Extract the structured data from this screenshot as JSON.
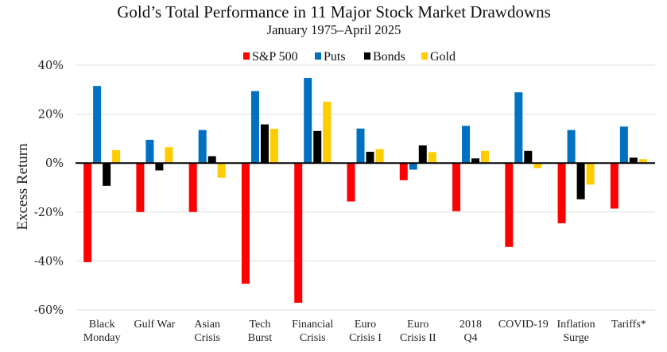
{
  "chart_data": {
    "type": "bar",
    "title": "Gold’s Total Performance in 11 Major Stock Market Drawdowns",
    "subtitle": "January 1975–April 2025",
    "xlabel": "",
    "ylabel": "Excess Return",
    "ylim": [
      -60,
      40
    ],
    "yticks": [
      40,
      20,
      0,
      -20,
      -40,
      -60
    ],
    "ytick_labels": [
      "40%",
      "20%",
      "0%",
      "-20%",
      "-40%",
      "-60%"
    ],
    "grid": true,
    "legend_position": "top-center",
    "categories": [
      [
        "Black",
        "Monday"
      ],
      [
        "Gulf War"
      ],
      [
        "Asian",
        "Crisis"
      ],
      [
        "Tech",
        "Burst"
      ],
      [
        "Financial",
        "Crisis"
      ],
      [
        "Euro",
        "Crisis I"
      ],
      [
        "Euro",
        "Crisis II"
      ],
      [
        "2018",
        "Q4"
      ],
      [
        "COVID-19"
      ],
      [
        "Inflation",
        "Surge"
      ],
      [
        "Tariffs*"
      ]
    ],
    "series": [
      {
        "name": "S&P 500",
        "color": "#ff0000",
        "values": [
          -40.5,
          -20.0,
          -20.0,
          -49.3,
          -57.1,
          -15.7,
          -7.0,
          -19.7,
          -34.3,
          -24.6,
          -18.6
        ]
      },
      {
        "name": "Puts",
        "color": "#0070c0",
        "values": [
          31.5,
          9.5,
          13.5,
          29.4,
          34.8,
          14.1,
          -2.7,
          15.2,
          28.9,
          13.5,
          14.9
        ]
      },
      {
        "name": "Bonds",
        "color": "#000000",
        "values": [
          -9.3,
          -3.0,
          2.8,
          15.8,
          13.1,
          4.6,
          7.2,
          1.9,
          5.0,
          -14.8,
          2.2
        ]
      },
      {
        "name": "Gold",
        "color": "#ffcc00",
        "values": [
          5.3,
          6.5,
          -6.0,
          14.0,
          25.1,
          5.7,
          4.5,
          5.0,
          -2.1,
          -8.8,
          1.6
        ]
      }
    ]
  }
}
